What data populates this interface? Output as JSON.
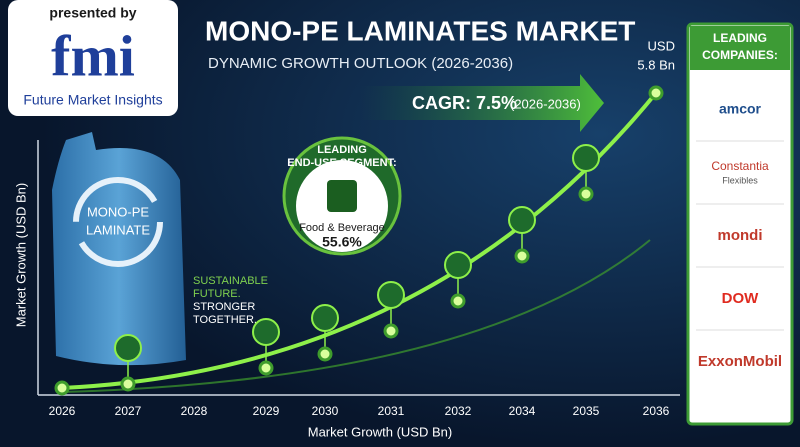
{
  "logo": {
    "presented_by": "presented by",
    "mark": "fmi",
    "name": "Future Market Insights"
  },
  "header": {
    "title": "MONO-PE LAMINATES MARKET",
    "subtitle": "DYNAMIC GROWTH OUTLOOK (2026-2036)"
  },
  "end_value": {
    "unit": "USD",
    "value": "5.8 Bn"
  },
  "cagr": {
    "label": "CAGR: 7.5%",
    "period": "(2026-2036)"
  },
  "segment": {
    "heading": [
      "LEADING",
      "END-USE SEGMENT:"
    ],
    "name": "Food & Beverage",
    "share": "55.6%"
  },
  "pouch": {
    "label": [
      "MONO-PE",
      "LAMINATE"
    ]
  },
  "slogan": [
    "SUSTAINABLE",
    "FUTURE.",
    "STRONGER",
    "TOGETHER."
  ],
  "axes": {
    "y_title": "Market Growth (USD Bn)",
    "x_title": "Market Growth (USD Bn)",
    "x_labels": [
      "2026",
      "2027",
      "2028",
      "2029",
      "2030",
      "2031",
      "2032",
      "2034",
      "2035",
      "2036"
    ]
  },
  "companies": {
    "heading": [
      "LEADING",
      "COMPANIES:"
    ],
    "entries": [
      {
        "name": "amcor"
      },
      {
        "name": "Constantia",
        "sub": "Flexibles"
      },
      {
        "name": "mondi"
      },
      {
        "name": "DOW"
      },
      {
        "name": "ExxonMobil"
      }
    ]
  }
}
